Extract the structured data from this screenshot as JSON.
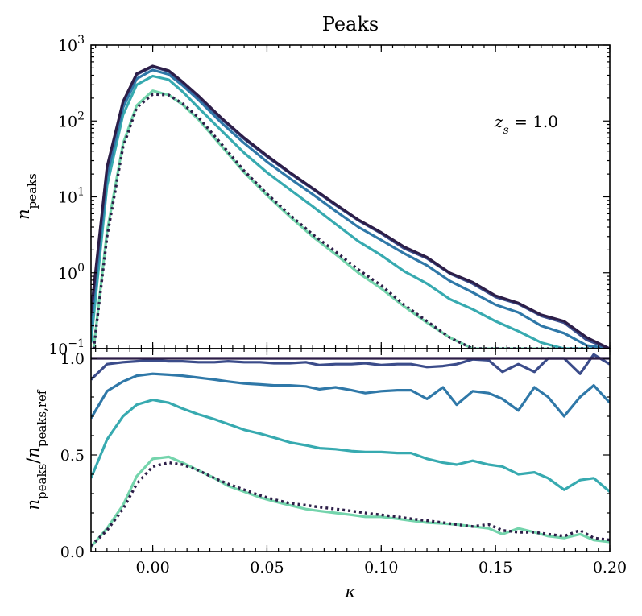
{
  "chart_data": {
    "type": "line",
    "title": "Peaks",
    "annotation": "z_s = 1.0",
    "xlabel": "κ",
    "xlim": [
      -0.027,
      0.2
    ],
    "xticks": [
      0.0,
      0.05,
      0.1,
      0.15,
      0.2
    ],
    "xtick_labels": [
      "0.00",
      "0.05",
      "0.10",
      "0.15",
      "0.20"
    ],
    "colors": {
      "s1": "#2d1e48",
      "s2": "#3b4c8a",
      "s3": "#2f78a8",
      "s4": "#37aab0",
      "s5": "#74d4ac",
      "ref": "#2d1e48"
    },
    "panels": {
      "top": {
        "ylabel": "n_peaks",
        "yscale": "log",
        "ylim": [
          0.1,
          1000
        ],
        "yticks": [
          0.1,
          1,
          10,
          100,
          1000
        ],
        "ytick_labels": [
          {
            "base": "10",
            "exp": "−1"
          },
          {
            "base": "10",
            "exp": "0"
          },
          {
            "base": "10",
            "exp": "1"
          },
          {
            "base": "10",
            "exp": "2"
          },
          {
            "base": "10",
            "exp": "3"
          }
        ],
        "x": [
          -0.027,
          -0.02,
          -0.013,
          -0.007,
          0.0,
          0.007,
          0.013,
          0.02,
          0.03,
          0.04,
          0.05,
          0.06,
          0.07,
          0.08,
          0.09,
          0.1,
          0.11,
          0.12,
          0.13,
          0.14,
          0.15,
          0.16,
          0.17,
          0.18,
          0.19,
          0.2
        ],
        "series": [
          {
            "key": "s1",
            "values": [
              0.3,
              25,
              180,
              420,
              530,
              460,
              330,
              215,
              110,
              60,
              35,
              21,
              13,
              8,
              5,
              3.4,
              2.2,
              1.6,
              1.0,
              0.75,
              0.5,
              0.4,
              0.28,
              0.23,
              0.14,
              0.1
            ]
          },
          {
            "key": "s2",
            "values": [
              0.27,
              24,
              175,
              410,
              520,
              450,
              320,
              208,
              107,
              58,
              34,
              20.5,
              12.7,
              7.8,
              4.9,
              3.3,
              2.1,
              1.55,
              0.98,
              0.72,
              0.48,
              0.39,
              0.27,
              0.22,
              0.13,
              0.1
            ]
          },
          {
            "key": "s3",
            "values": [
              0.2,
              19,
              150,
              360,
              470,
              410,
              295,
              190,
              95,
              51,
              29,
              17.5,
              10.8,
              6.5,
              4.0,
              2.7,
              1.8,
              1.25,
              0.78,
              0.55,
              0.38,
              0.3,
              0.2,
              0.16,
              0.11,
              0.1
            ]
          },
          {
            "key": "s4",
            "values": [
              0.12,
              14,
              120,
              300,
              390,
              350,
              245,
              150,
              75,
              38,
              21,
              12.5,
              7.5,
              4.4,
              2.6,
              1.7,
              1.05,
              0.72,
              0.45,
              0.33,
              0.23,
              0.17,
              0.12,
              0.1,
              0.1,
              0.1
            ]
          },
          {
            "key": "s5",
            "values": [
              0.05,
              3.5,
              50,
              160,
              250,
              220,
              165,
              105,
              47,
              21,
              10.5,
              5.5,
              3.0,
              1.75,
              1.0,
              0.62,
              0.36,
              0.22,
              0.14,
              0.1,
              0.1,
              0.1,
              0.1,
              0.1,
              0.1,
              0.1
            ]
          },
          {
            "key": "ref",
            "dashed": true,
            "values": [
              0.05,
              3.0,
              45,
              150,
              225,
              220,
              170,
              112,
              50,
              22,
              11,
              5.8,
              3.2,
              1.9,
              1.1,
              0.68,
              0.38,
              0.23,
              0.14,
              0.1,
              0.1,
              0.1,
              0.1,
              0.1,
              0.1,
              0.1
            ]
          }
        ]
      },
      "bottom": {
        "ylabel": "n_peaks / n_peaks,ref",
        "ylim": [
          0.0,
          1.05
        ],
        "yticks": [
          0.0,
          0.5,
          1.0
        ],
        "ytick_labels": [
          "0.0",
          "0.5",
          "1.0"
        ],
        "x": [
          -0.027,
          -0.02,
          -0.013,
          -0.007,
          0.0,
          0.007,
          0.013,
          0.02,
          0.027,
          0.033,
          0.04,
          0.047,
          0.053,
          0.06,
          0.067,
          0.073,
          0.08,
          0.087,
          0.093,
          0.1,
          0.107,
          0.113,
          0.12,
          0.127,
          0.133,
          0.14,
          0.147,
          0.153,
          0.16,
          0.167,
          0.173,
          0.18,
          0.187,
          0.193,
          0.2
        ],
        "series": [
          {
            "key": "s1",
            "values": [
              1.0,
              1.0,
              1.0,
              1.0,
              1.0,
              1.0,
              1.0,
              1.0,
              1.0,
              1.0,
              1.0,
              1.0,
              1.0,
              1.0,
              1.0,
              1.0,
              1.0,
              1.0,
              1.0,
              1.0,
              1.0,
              1.0,
              1.0,
              1.0,
              1.0,
              1.0,
              1.0,
              1.0,
              1.0,
              1.0,
              1.0,
              1.0,
              1.0,
              1.0,
              1.0
            ]
          },
          {
            "key": "s2",
            "values": [
              0.89,
              0.97,
              0.98,
              0.985,
              0.99,
              0.985,
              0.985,
              0.98,
              0.98,
              0.985,
              0.98,
              0.98,
              0.975,
              0.975,
              0.98,
              0.965,
              0.97,
              0.97,
              0.975,
              0.965,
              0.97,
              0.97,
              0.955,
              0.96,
              0.97,
              0.995,
              0.99,
              0.93,
              0.97,
              0.93,
              1.0,
              1.0,
              0.92,
              1.02,
              0.97
            ]
          },
          {
            "key": "s3",
            "values": [
              0.69,
              0.83,
              0.88,
              0.91,
              0.92,
              0.915,
              0.91,
              0.9,
              0.89,
              0.88,
              0.87,
              0.865,
              0.86,
              0.86,
              0.855,
              0.84,
              0.85,
              0.835,
              0.82,
              0.83,
              0.835,
              0.835,
              0.79,
              0.85,
              0.76,
              0.83,
              0.82,
              0.79,
              0.73,
              0.85,
              0.8,
              0.7,
              0.8,
              0.86,
              0.77
            ]
          },
          {
            "key": "s4",
            "values": [
              0.38,
              0.58,
              0.7,
              0.76,
              0.785,
              0.77,
              0.74,
              0.71,
              0.685,
              0.66,
              0.63,
              0.61,
              0.59,
              0.565,
              0.55,
              0.535,
              0.53,
              0.52,
              0.515,
              0.515,
              0.51,
              0.51,
              0.48,
              0.46,
              0.45,
              0.47,
              0.45,
              0.44,
              0.4,
              0.41,
              0.38,
              0.32,
              0.37,
              0.38,
              0.31
            ]
          },
          {
            "key": "s5",
            "values": [
              0.025,
              0.12,
              0.24,
              0.39,
              0.48,
              0.49,
              0.46,
              0.42,
              0.38,
              0.34,
              0.31,
              0.28,
              0.26,
              0.24,
              0.22,
              0.21,
              0.2,
              0.19,
              0.18,
              0.18,
              0.17,
              0.16,
              0.15,
              0.145,
              0.14,
              0.13,
              0.12,
              0.09,
              0.12,
              0.1,
              0.08,
              0.07,
              0.09,
              0.06,
              0.05
            ]
          },
          {
            "key": "ref",
            "dashed": true,
            "values": [
              0.03,
              0.11,
              0.22,
              0.35,
              0.44,
              0.46,
              0.45,
              0.42,
              0.38,
              0.35,
              0.32,
              0.29,
              0.27,
              0.25,
              0.24,
              0.23,
              0.22,
              0.21,
              0.2,
              0.19,
              0.18,
              0.17,
              0.16,
              0.15,
              0.14,
              0.13,
              0.14,
              0.11,
              0.1,
              0.1,
              0.09,
              0.08,
              0.11,
              0.07,
              0.06
            ]
          }
        ]
      }
    }
  }
}
